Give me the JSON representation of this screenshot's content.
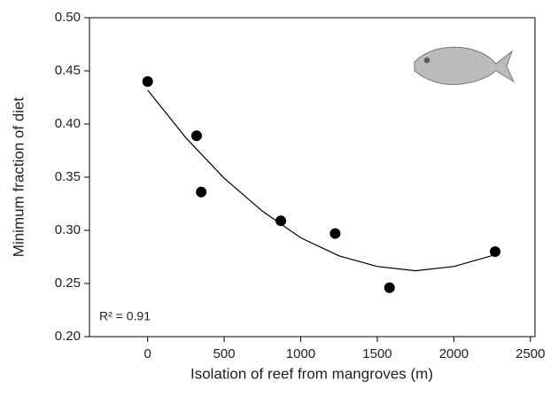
{
  "chart_data": {
    "type": "scatter",
    "x_label": "Isolation of reef from mangroves (m)",
    "y_label": "Minimum fraction of diet",
    "annotation": "R² = 0.91",
    "x": [
      0,
      320,
      350,
      870,
      1225,
      1580,
      2270
    ],
    "values": [
      0.44,
      0.389,
      0.336,
      0.309,
      0.297,
      0.246,
      0.28
    ],
    "color": "#000000",
    "fit": {
      "x": [
        0,
        250,
        500,
        750,
        1000,
        1250,
        1500,
        1750,
        2000,
        2270
      ],
      "values": [
        0.432,
        0.387,
        0.349,
        0.318,
        0.293,
        0.276,
        0.266,
        0.262,
        0.266,
        0.277
      ]
    },
    "xlim": [
      -380,
      2530
    ],
    "ylim": [
      0.2,
      0.5
    ],
    "xticks": [
      0,
      500,
      1000,
      1500,
      2000,
      2500
    ],
    "yticks": [
      {
        "value": 0.2,
        "label": "0.20"
      },
      {
        "value": 0.25,
        "label": "0.25"
      },
      {
        "value": 0.3,
        "label": "0.30"
      },
      {
        "value": 0.35,
        "label": "0.35"
      },
      {
        "value": 0.4,
        "label": "0.40"
      },
      {
        "value": 0.45,
        "label": "0.45"
      },
      {
        "value": 0.5,
        "label": "0.50"
      }
    ]
  }
}
